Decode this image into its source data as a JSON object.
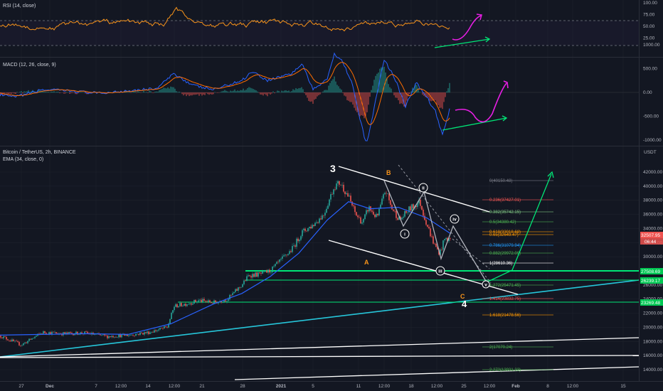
{
  "panels": {
    "rsi": {
      "title": "RSI (14, close)",
      "ticks": [
        "100.00",
        "75.00",
        "50.00",
        "25.00"
      ]
    },
    "macd": {
      "title": "MACD (12, 26, close, 9)",
      "ticks": [
        "1000.00",
        "500.00",
        "0.00",
        "-500.00",
        "-1000.00"
      ]
    },
    "main": {
      "title": "Bitcoin / TetherUS, 2h, BINANCE",
      "subtitle": "EMA (34, close, 0)",
      "currency": "USDT",
      "ticks": [
        "42000.00",
        "40000.00",
        "38000.00",
        "36000.00",
        "34000.00",
        "32000.00",
        "30000.00",
        "28000.00",
        "26000.00",
        "24000.00",
        "22000.00",
        "20000.00",
        "18000.00",
        "16000.00",
        "14000.00"
      ]
    }
  },
  "x_axis": {
    "labels": [
      "27",
      "Dec",
      "7",
      "12:00",
      "14",
      "12:00",
      "21",
      "28",
      "2021",
      "5",
      "11",
      "12:00",
      "18",
      "12:00",
      "25",
      "12:00",
      "Feb",
      "8",
      "12:00",
      "15"
    ]
  },
  "price_tags": {
    "last": "32507.95",
    "countdown": "06:44",
    "level_1": "27508.69",
    "level_2": "26239.17",
    "level_3": "23269.48"
  },
  "waves": {
    "w3": "3",
    "w4": "4",
    "A": "A",
    "B": "B",
    "C": "C",
    "i": "i",
    "ii": "ii",
    "iii": "iii",
    "iv": "iv",
    "v": "v"
  },
  "fib_labels": [
    "0(40150.48)",
    "0.236(37427.01)",
    "0.382(35742.15)",
    "0.5(34380.42)",
    "0.618(33018.68)",
    "0.65(32649.47)",
    "0.786(31079.94)",
    "0.882(29972.09)",
    "1(28610.36)",
    "1.272(25471.45)",
    "1.414(23832.75)",
    "1.618(21478.56)",
    "2(17070.24)",
    "2.272(13931.33)"
  ],
  "colors": {
    "background": "#131722",
    "rsi_line": "#f7931a",
    "ema": "#2962ff",
    "bull": "#26a69a",
    "bear": "#ef5350",
    "support": "#00e676",
    "projection": "#4caf50",
    "divergence": "#e91ee6"
  },
  "chart_data": {
    "type": "candlestick",
    "series": [
      {
        "name": "Bitcoin / TetherUS, 2h, BINANCE",
        "points": [
          [
            0,
            18800
          ],
          [
            30,
            17500
          ],
          [
            60,
            19300
          ],
          [
            90,
            19100
          ],
          [
            120,
            19200
          ],
          [
            150,
            18700
          ],
          [
            180,
            18900
          ],
          [
            210,
            19300
          ],
          [
            235,
            20000
          ],
          [
            245,
            23000
          ],
          [
            260,
            23300
          ],
          [
            280,
            23800
          ],
          [
            300,
            23500
          ],
          [
            320,
            24000
          ],
          [
            340,
            26000
          ],
          [
            350,
            27400
          ],
          [
            365,
            27500
          ],
          [
            380,
            28000
          ],
          [
            395,
            29500
          ],
          [
            410,
            31000
          ],
          [
            425,
            33500
          ],
          [
            440,
            34500
          ],
          [
            455,
            36000
          ],
          [
            470,
            40000
          ],
          [
            478,
            40500
          ],
          [
            490,
            38500
          ],
          [
            500,
            36000
          ],
          [
            510,
            34800
          ],
          [
            518,
            37000
          ],
          [
            530,
            35500
          ],
          [
            542,
            39500
          ],
          [
            550,
            37000
          ],
          [
            562,
            35200
          ],
          [
            575,
            36700
          ],
          [
            590,
            37800
          ],
          [
            598,
            35200
          ],
          [
            610,
            31800
          ],
          [
            618,
            30500
          ],
          [
            625,
            32500
          ],
          [
            633,
            32507
          ]
        ]
      },
      {
        "name": "EMA (34, close, 0)",
        "points": [
          [
            0,
            18900
          ],
          [
            60,
            19000
          ],
          [
            120,
            19100
          ],
          [
            180,
            19000
          ],
          [
            240,
            20500
          ],
          [
            300,
            23300
          ],
          [
            340,
            24800
          ],
          [
            380,
            27200
          ],
          [
            420,
            30500
          ],
          [
            460,
            35200
          ],
          [
            490,
            37800
          ],
          [
            520,
            36800
          ],
          [
            560,
            37000
          ],
          [
            600,
            35500
          ],
          [
            633,
            33300
          ]
        ]
      }
    ],
    "y_range": [
      13000,
      43000
    ],
    "indicators": {
      "RSI": {
        "range": [
          0,
          100
        ],
        "levels": [
          70,
          30
        ]
      },
      "MACD": {
        "range": [
          -1800,
          1400
        ]
      }
    },
    "annotations": {
      "fib_levels": [
        40150.48,
        37427.01,
        35742.15,
        34380.42,
        33018.68,
        32649.47,
        31079.94,
        29972.09,
        28610.36,
        25471.45,
        23832.75,
        21478.56,
        17070.24,
        13931.33
      ],
      "horizontal_support": [
        27508.69,
        26239.17,
        23269.48
      ]
    }
  }
}
